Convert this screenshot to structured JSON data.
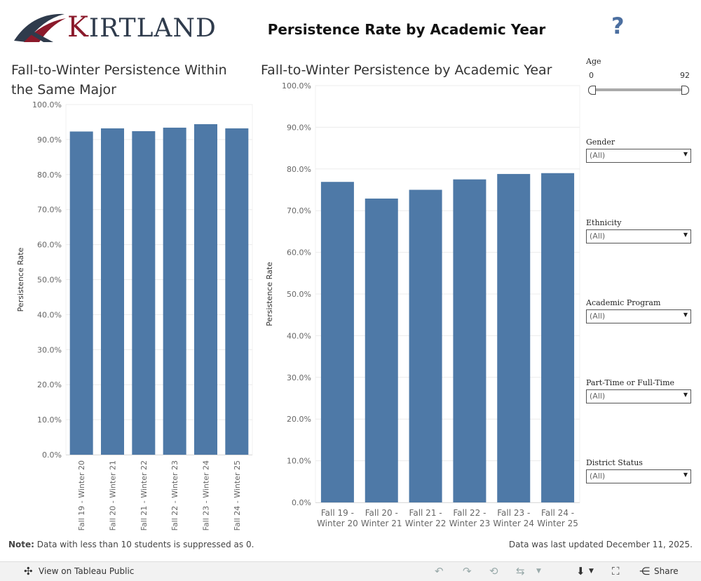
{
  "header": {
    "logo_text": "KIRTLAND",
    "dashboard_title": "Persistence Rate by Academic Year",
    "help_glyph": "?"
  },
  "colors": {
    "bar": "#4e79a7",
    "brand_navy": "#2f3b4c",
    "brand_red": "#8b1a2b"
  },
  "chart_data": [
    {
      "type": "bar",
      "title": "Fall-to-Winter Persistence Within the Same Major",
      "ylabel": "Persistence Rate",
      "xlabel": "",
      "ylim": [
        0,
        100
      ],
      "yticks": [
        "0.0%",
        "10.0%",
        "20.0%",
        "30.0%",
        "40.0%",
        "50.0%",
        "60.0%",
        "70.0%",
        "80.0%",
        "90.0%",
        "100.0%"
      ],
      "categories": [
        "Fall 19 - Winter 20",
        "Fall 20 - Winter 21",
        "Fall 21 - Winter 22",
        "Fall 22 - Winter 23",
        "Fall 23 - Winter 24",
        "Fall 24 - Winter 25"
      ],
      "values": [
        92.3,
        93.2,
        92.4,
        93.4,
        94.4,
        93.2
      ],
      "grid": true
    },
    {
      "type": "bar",
      "title": "Fall-to-Winter Persistence by Academic Year",
      "ylabel": "Persistence Rate",
      "xlabel": "",
      "ylim": [
        0,
        100
      ],
      "yticks": [
        "0.0%",
        "10.0%",
        "20.0%",
        "30.0%",
        "40.0%",
        "50.0%",
        "60.0%",
        "70.0%",
        "80.0%",
        "90.0%",
        "100.0%"
      ],
      "categories": [
        "Fall 19 - Winter 20",
        "Fall 20 - Winter 21",
        "Fall 21 - Winter 22",
        "Fall 22 - Winter 23",
        "Fall 23 - Winter 24",
        "Fall 24 - Winter 25"
      ],
      "category_lines": [
        [
          "Fall 19 -",
          "Winter 20"
        ],
        [
          "Fall 20 -",
          "Winter 21"
        ],
        [
          "Fall 21 -",
          "Winter 22"
        ],
        [
          "Fall 22 -",
          "Winter 23"
        ],
        [
          "Fall 23 -",
          "Winter 24"
        ],
        [
          "Fall 24 -",
          "Winter 25"
        ]
      ],
      "values": [
        76.9,
        72.9,
        75.0,
        77.5,
        78.8,
        79.0
      ],
      "grid": true
    }
  ],
  "filters": {
    "age": {
      "label": "Age",
      "min": "0",
      "max": "92"
    },
    "dropdowns": [
      {
        "label": "Gender",
        "value": "(All)"
      },
      {
        "label": "Ethnicity",
        "value": "(All)"
      },
      {
        "label": "Academic Program",
        "value": "(All)"
      },
      {
        "label": "Part-Time or Full-Time",
        "value": "(All)"
      },
      {
        "label": "District Status",
        "value": "(All)"
      }
    ]
  },
  "footer": {
    "note_label": "Note:",
    "note_text": " Data with less than 10 students is suppressed as 0.",
    "updated": "Data was last updated December 11, 2025."
  },
  "toolbar": {
    "view_label": "View on Tableau Public",
    "share_label": "Share"
  }
}
